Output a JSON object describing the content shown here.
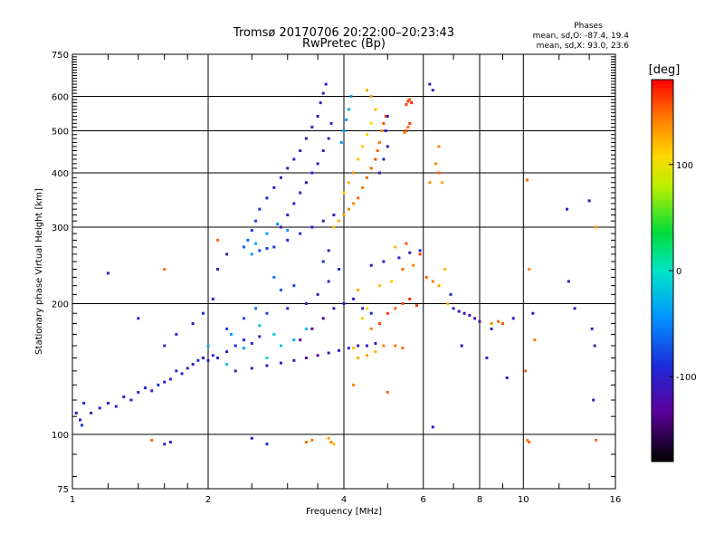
{
  "chart_data": {
    "type": "scatter",
    "title": "Tromsø 20170706 20:22:00–20:23:43",
    "subtitle": "RwPretec (Bp)",
    "xlabel": "Frequency [MHz]",
    "ylabel": "Stationary phase Virtual Height [km]",
    "x_scale": "log",
    "y_scale": "log",
    "xlim": [
      1,
      16
    ],
    "ylim": [
      75,
      750
    ],
    "x_ticks": [
      1,
      2,
      4,
      6,
      8,
      10,
      16
    ],
    "x_tick_labels": [
      "1",
      "2",
      "4",
      "6",
      "8",
      "10",
      "16"
    ],
    "y_ticks": [
      75,
      100,
      200,
      300,
      400,
      500,
      600,
      750
    ],
    "y_tick_labels": [
      "75",
      "100",
      "200",
      "300",
      "400",
      "500",
      "600",
      "750"
    ],
    "grid": true,
    "stats_header": "Phases",
    "stats_line_o": "mean, sd,O: -87.4, 19.4",
    "stats_line_x": "mean, sd,X:  93.0, 23.6",
    "colorbar": {
      "title": "[deg]",
      "range": [
        -180,
        180
      ],
      "ticks": [
        100,
        0,
        -100
      ],
      "tick_labels": [
        "100",
        "0",
        "-100"
      ]
    },
    "points": [
      [
        1.02,
        112,
        -95
      ],
      [
        1.04,
        108,
        -100
      ],
      [
        1.06,
        118,
        -90
      ],
      [
        1.05,
        105,
        -85
      ],
      [
        1.1,
        112,
        -105
      ],
      [
        1.15,
        115,
        -98
      ],
      [
        1.2,
        118,
        -92
      ],
      [
        1.25,
        116,
        -100
      ],
      [
        1.3,
        122,
        -95
      ],
      [
        1.35,
        120,
        -100
      ],
      [
        1.4,
        125,
        -88
      ],
      [
        1.45,
        128,
        -97
      ],
      [
        1.5,
        126,
        -104
      ],
      [
        1.55,
        130,
        -92
      ],
      [
        1.6,
        132,
        -100
      ],
      [
        1.65,
        134,
        -95
      ],
      [
        1.7,
        140,
        -90
      ],
      [
        1.75,
        138,
        -100
      ],
      [
        1.8,
        142,
        -95
      ],
      [
        1.85,
        145,
        -105
      ],
      [
        1.9,
        148,
        -92
      ],
      [
        1.95,
        150,
        -98
      ],
      [
        2.0,
        148,
        -102
      ],
      [
        2.05,
        152,
        -90
      ],
      [
        2.1,
        150,
        -95
      ],
      [
        2.2,
        155,
        -100
      ],
      [
        2.3,
        160,
        -88
      ],
      [
        2.4,
        165,
        -92
      ],
      [
        2.5,
        162,
        -100
      ],
      [
        2.6,
        168,
        -95
      ],
      [
        1.6,
        160,
        -95
      ],
      [
        1.7,
        170,
        -92
      ],
      [
        1.85,
        180,
        -98
      ],
      [
        1.95,
        190,
        -90
      ],
      [
        2.05,
        205,
        -100
      ],
      [
        2.2,
        175,
        -85
      ],
      [
        2.4,
        185,
        -70
      ],
      [
        2.55,
        195,
        -60
      ],
      [
        2.7,
        190,
        -80
      ],
      [
        2.3,
        140,
        -102
      ],
      [
        2.5,
        142,
        -98
      ],
      [
        2.7,
        144,
        -100
      ],
      [
        2.9,
        146,
        -110
      ],
      [
        3.1,
        148,
        -115
      ],
      [
        3.3,
        150,
        -120
      ],
      [
        3.5,
        152,
        -125
      ],
      [
        3.7,
        154,
        -110
      ],
      [
        3.9,
        156,
        -100
      ],
      [
        4.1,
        158,
        -105
      ],
      [
        4.3,
        160,
        -115
      ],
      [
        4.5,
        160,
        -100
      ],
      [
        4.7,
        162,
        -105
      ],
      [
        3.2,
        165,
        -130
      ],
      [
        3.4,
        175,
        -135
      ],
      [
        3.6,
        185,
        -125
      ],
      [
        3.8,
        195,
        -115
      ],
      [
        4.0,
        200,
        -105
      ],
      [
        4.2,
        205,
        -95
      ],
      [
        4.4,
        195,
        -100
      ],
      [
        4.6,
        190,
        -90
      ],
      [
        3.0,
        195,
        -90
      ],
      [
        3.3,
        200,
        -95
      ],
      [
        2.9,
        215,
        -70
      ],
      [
        2.8,
        230,
        -60
      ],
      [
        3.1,
        220,
        -80
      ],
      [
        3.5,
        210,
        -110
      ],
      [
        3.7,
        225,
        -95
      ],
      [
        3.9,
        240,
        -85
      ],
      [
        3.6,
        250,
        -90
      ],
      [
        3.7,
        265,
        -100
      ],
      [
        4.3,
        150,
        125
      ],
      [
        4.5,
        152,
        130
      ],
      [
        4.7,
        155,
        120
      ],
      [
        4.2,
        158,
        118
      ],
      [
        4.9,
        160,
        140
      ],
      [
        5.2,
        160,
        145
      ],
      [
        5.4,
        158,
        150
      ],
      [
        4.6,
        175,
        140
      ],
      [
        4.8,
        180,
        160
      ],
      [
        5.0,
        190,
        165
      ],
      [
        5.2,
        195,
        150
      ],
      [
        5.4,
        200,
        160
      ],
      [
        5.6,
        205,
        170
      ],
      [
        5.8,
        198,
        165
      ],
      [
        4.4,
        185,
        110
      ],
      [
        4.5,
        195,
        100
      ],
      [
        4.3,
        215,
        130
      ],
      [
        4.8,
        220,
        120
      ],
      [
        5.1,
        225,
        115
      ],
      [
        5.4,
        240,
        150
      ],
      [
        5.7,
        245,
        140
      ],
      [
        5.9,
        260,
        160
      ],
      [
        5.2,
        270,
        120
      ],
      [
        5.5,
        275,
        155
      ],
      [
        4.6,
        245,
        -100
      ],
      [
        4.9,
        250,
        -105
      ],
      [
        5.3,
        255,
        -95
      ],
      [
        5.6,
        262,
        -110
      ],
      [
        5.9,
        265,
        -100
      ],
      [
        2.4,
        270,
        -70
      ],
      [
        2.45,
        280,
        -65
      ],
      [
        2.5,
        295,
        -75
      ],
      [
        2.55,
        310,
        -80
      ],
      [
        2.6,
        330,
        -85
      ],
      [
        2.7,
        350,
        -90
      ],
      [
        2.8,
        370,
        -95
      ],
      [
        2.9,
        390,
        -100
      ],
      [
        3.0,
        410,
        -105
      ],
      [
        3.1,
        430,
        -100
      ],
      [
        3.2,
        450,
        -110
      ],
      [
        3.3,
        480,
        -115
      ],
      [
        3.4,
        510,
        -110
      ],
      [
        3.5,
        540,
        -105
      ],
      [
        3.55,
        580,
        -100
      ],
      [
        3.6,
        610,
        -110
      ],
      [
        3.65,
        640,
        -105
      ],
      [
        2.6,
        265,
        -75
      ],
      [
        2.7,
        268,
        -80
      ],
      [
        2.8,
        270,
        -85
      ],
      [
        3.0,
        280,
        -90
      ],
      [
        3.2,
        290,
        -95
      ],
      [
        3.4,
        300,
        -100
      ],
      [
        3.6,
        310,
        -105
      ],
      [
        3.8,
        320,
        -100
      ],
      [
        2.9,
        300,
        -100
      ],
      [
        3.0,
        320,
        -110
      ],
      [
        3.1,
        340,
        -95
      ],
      [
        3.2,
        360,
        -100
      ],
      [
        3.3,
        380,
        -105
      ],
      [
        3.4,
        400,
        -98
      ],
      [
        3.5,
        420,
        -102
      ],
      [
        3.6,
        450,
        -96
      ],
      [
        3.7,
        480,
        -100
      ],
      [
        3.75,
        520,
        -104
      ],
      [
        2.5,
        260,
        -40
      ],
      [
        2.55,
        275,
        -30
      ],
      [
        2.7,
        290,
        -35
      ],
      [
        2.85,
        305,
        -45
      ],
      [
        3.0,
        295,
        -40
      ],
      [
        3.8,
        300,
        120
      ],
      [
        3.9,
        310,
        125
      ],
      [
        4.0,
        320,
        130
      ],
      [
        4.1,
        330,
        140
      ],
      [
        4.2,
        340,
        135
      ],
      [
        4.3,
        350,
        150
      ],
      [
        4.4,
        370,
        145
      ],
      [
        4.5,
        390,
        150
      ],
      [
        4.6,
        410,
        155
      ],
      [
        4.7,
        430,
        160
      ],
      [
        4.75,
        450,
        150
      ],
      [
        4.8,
        470,
        145
      ],
      [
        4.85,
        500,
        140
      ],
      [
        4.9,
        520,
        160
      ],
      [
        4.95,
        540,
        155
      ],
      [
        4.0,
        360,
        110
      ],
      [
        4.1,
        380,
        120
      ],
      [
        4.2,
        400,
        130
      ],
      [
        4.3,
        430,
        120
      ],
      [
        4.4,
        460,
        115
      ],
      [
        4.5,
        490,
        110
      ],
      [
        4.6,
        520,
        105
      ],
      [
        4.7,
        560,
        120
      ],
      [
        4.6,
        600,
        130
      ],
      [
        4.5,
        620,
        125
      ],
      [
        3.95,
        470,
        -40
      ],
      [
        4.0,
        500,
        -35
      ],
      [
        4.05,
        530,
        -45
      ],
      [
        4.1,
        560,
        -30
      ],
      [
        4.15,
        600,
        -40
      ],
      [
        4.8,
        400,
        -100
      ],
      [
        4.9,
        430,
        -95
      ],
      [
        5.0,
        460,
        -105
      ],
      [
        4.95,
        500,
        -98
      ],
      [
        5.0,
        540,
        -110
      ],
      [
        5.5,
        575,
        160
      ],
      [
        5.55,
        585,
        165
      ],
      [
        5.6,
        590,
        155
      ],
      [
        5.5,
        500,
        160
      ],
      [
        5.55,
        510,
        150
      ],
      [
        5.6,
        520,
        165
      ],
      [
        5.45,
        495,
        140
      ],
      [
        5.65,
        580,
        170
      ],
      [
        6.2,
        640,
        -110
      ],
      [
        6.3,
        620,
        -100
      ],
      [
        6.4,
        420,
        140
      ],
      [
        6.5,
        400,
        150
      ],
      [
        6.6,
        380,
        125
      ],
      [
        6.2,
        380,
        135
      ],
      [
        6.5,
        460,
        140
      ],
      [
        6.8,
        200,
        120
      ],
      [
        7.0,
        195,
        -100
      ],
      [
        7.2,
        192,
        -110
      ],
      [
        7.4,
        190,
        -120
      ],
      [
        7.6,
        188,
        -105
      ],
      [
        7.8,
        185,
        -115
      ],
      [
        8.0,
        182,
        -110
      ],
      [
        8.5,
        180,
        140
      ],
      [
        8.8,
        182,
        150
      ],
      [
        9.0,
        180,
        155
      ],
      [
        6.1,
        230,
        150
      ],
      [
        6.3,
        225,
        145
      ],
      [
        6.5,
        220,
        130
      ],
      [
        6.7,
        240,
        120
      ],
      [
        6.9,
        210,
        -90
      ],
      [
        7.3,
        160,
        -100
      ],
      [
        8.5,
        175,
        -95
      ],
      [
        9.5,
        185,
        -105
      ],
      [
        10.5,
        190,
        -100
      ],
      [
        12.5,
        330,
        -95
      ],
      [
        14.0,
        345,
        -110
      ],
      [
        14.5,
        300,
        130
      ],
      [
        14.2,
        175,
        -95
      ],
      [
        14.4,
        160,
        -110
      ],
      [
        14.3,
        120,
        -100
      ],
      [
        10.2,
        385,
        150
      ],
      [
        10.3,
        240,
        140
      ],
      [
        10.6,
        165,
        145
      ],
      [
        12.6,
        225,
        -100
      ],
      [
        13.0,
        195,
        -95
      ],
      [
        1.5,
        97,
        150
      ],
      [
        1.6,
        95,
        -100
      ],
      [
        1.65,
        96,
        -95
      ],
      [
        2.7,
        95,
        -90
      ],
      [
        3.3,
        96,
        150
      ],
      [
        3.4,
        97,
        145
      ],
      [
        3.7,
        98,
        130
      ],
      [
        3.75,
        96,
        140
      ],
      [
        3.8,
        95,
        120
      ],
      [
        6.3,
        104,
        -100
      ],
      [
        10.2,
        97,
        140
      ],
      [
        10.3,
        96,
        150
      ],
      [
        14.5,
        97,
        150
      ],
      [
        8.3,
        150,
        -95
      ],
      [
        9.2,
        135,
        -100
      ],
      [
        10.1,
        140,
        150
      ],
      [
        5.0,
        125,
        150
      ],
      [
        4.2,
        130,
        140
      ],
      [
        2.5,
        98,
        -105
      ],
      [
        1.2,
        235,
        -100
      ],
      [
        1.4,
        185,
        -95
      ],
      [
        1.6,
        240,
        150
      ],
      [
        2.1,
        240,
        -100
      ],
      [
        2.2,
        260,
        -105
      ],
      [
        2.1,
        280,
        150
      ],
      [
        2.7,
        150,
        -10
      ],
      [
        2.9,
        160,
        -20
      ],
      [
        2.8,
        170,
        -15
      ],
      [
        3.1,
        165,
        -30
      ],
      [
        3.3,
        175,
        -20
      ],
      [
        2.6,
        178,
        -25
      ],
      [
        2.4,
        158,
        -35
      ],
      [
        2.25,
        170,
        -40
      ],
      [
        2.2,
        145,
        -20
      ],
      [
        2.0,
        160,
        -30
      ]
    ]
  }
}
